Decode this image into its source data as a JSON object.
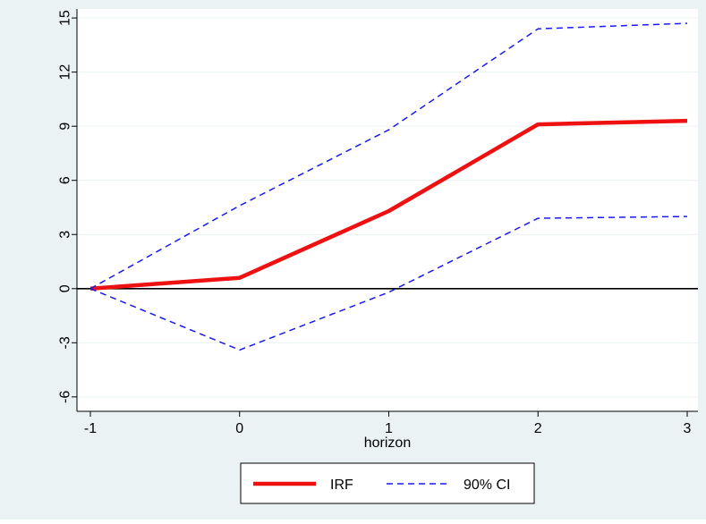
{
  "colors": {
    "outer_background": "#eaf2f3",
    "plot_background": "#ffffff",
    "grid": "#eaf2f3",
    "irf_line": "#ee1111",
    "ci_line": "#1a1aee",
    "zero_line": "#000000"
  },
  "chart_data": {
    "type": "line",
    "title": "",
    "xlabel": "horizon",
    "ylabel": "",
    "x": [
      -1,
      0,
      1,
      2,
      3
    ],
    "xticks": [
      "-1",
      "0",
      "1",
      "2",
      "3"
    ],
    "yticks": [
      "-6",
      "-3",
      "0",
      "3",
      "6",
      "9",
      "12",
      "15"
    ],
    "xlim": [
      -1,
      3
    ],
    "ylim": [
      -6.8,
      15.5
    ],
    "grid": true,
    "zero_line": true,
    "legend_position": "bottom-center",
    "series": [
      {
        "name": "IRF",
        "style": "solid",
        "values": [
          0,
          0.6,
          4.3,
          9.1,
          9.3
        ]
      },
      {
        "name": "90% CI",
        "style": "dashed",
        "band": "upper",
        "values": [
          0,
          4.6,
          8.8,
          14.4,
          14.7
        ]
      },
      {
        "name": "90% CI",
        "style": "dashed",
        "band": "lower",
        "values": [
          0,
          -3.4,
          -0.2,
          3.9,
          4.0
        ]
      }
    ],
    "legend": [
      "IRF",
      "90% CI"
    ]
  }
}
